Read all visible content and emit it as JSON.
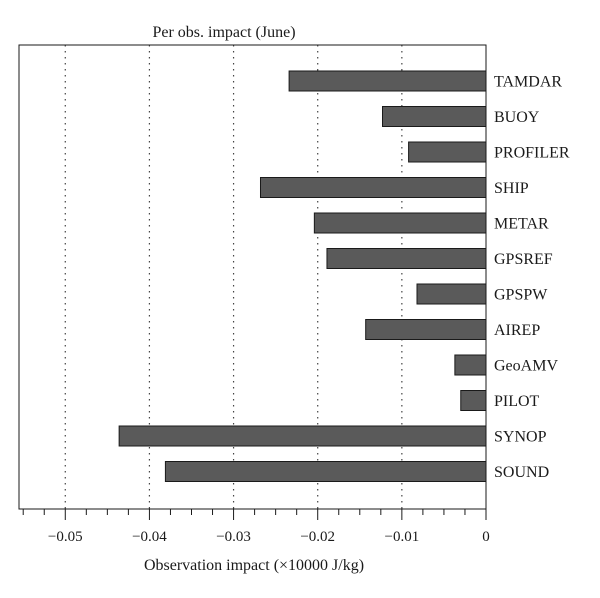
{
  "chart_data": {
    "type": "bar",
    "orientation": "horizontal",
    "title": "Per obs. impact (June)",
    "xlabel": "Observation impact (×10000 J/kg)",
    "ylabel": "",
    "categories": [
      "TAMDAR",
      "BUOY",
      "PROFILER",
      "SHIP",
      "METAR",
      "GPSREF",
      "GPSPW",
      "AIREP",
      "GeoAMV",
      "PILOT",
      "SYNOP",
      "SOUND"
    ],
    "values": [
      -0.0234,
      -0.0123,
      -0.0092,
      -0.0268,
      -0.0204,
      -0.0189,
      -0.0082,
      -0.0143,
      -0.0037,
      -0.003,
      -0.0436,
      -0.0381
    ],
    "xlim": [
      -0.0555,
      0
    ],
    "xticks": [
      -0.05,
      -0.04,
      -0.03,
      -0.02,
      -0.01,
      0
    ],
    "xtick_labels": [
      "−0.05",
      "−0.04",
      "−0.03",
      "−0.02",
      "−0.01",
      "0"
    ],
    "minor_tick_step": 0.0025,
    "grid": "vertical dotted",
    "bar_color": "#5a5a5a"
  }
}
